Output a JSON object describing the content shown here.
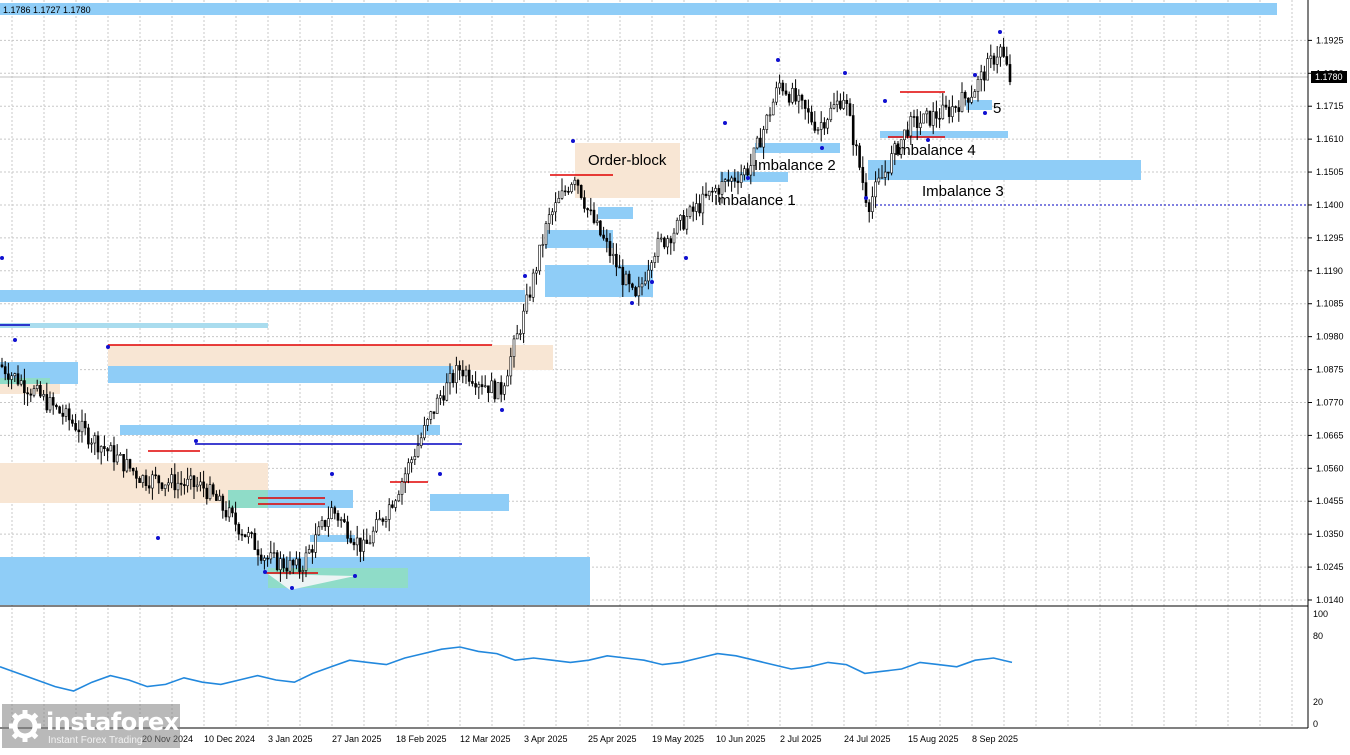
{
  "window": {
    "ohlc_readout": "1.1786 1.1727 1.1780"
  },
  "colors": {
    "grid": "#c8c8c8",
    "imbalance_zone": "#8fcdf7",
    "order_block_zone": "#f8e6d4",
    "teal_zone": "#8fdcc8",
    "red_level": "#e00000",
    "blue_level": "#0000c0",
    "pivot_marker": "#1010d0",
    "oscillator_line": "#2288dd",
    "candle": "#000000",
    "current_price_bg": "#000000",
    "current_price_fg": "#ffffff"
  },
  "chart_data": [
    {
      "type": "candlestick",
      "symbol_hint": "EURUSD",
      "ylim": [
        1.014,
        1.199
      ],
      "y_ticks": [
        1.1925,
        1.182,
        1.1715,
        1.161,
        1.1505,
        1.14,
        1.1295,
        1.119,
        1.1085,
        1.098,
        1.0875,
        1.077,
        1.0665,
        1.056,
        1.0455,
        1.035,
        1.0245,
        1.014
      ],
      "y_tick_labels": [
        "1.1925",
        "1.1820",
        "1.1715",
        "1.1610",
        "1.1505",
        "1.1400",
        "1.1295",
        "1.1190",
        "1.1085",
        "1.0980",
        "1.0875",
        "1.0770",
        "1.0665",
        "1.0560",
        "1.0455",
        "1.0350",
        "1.0245",
        "1.0140"
      ],
      "current_price": "1.1780",
      "x_tick_labels": [
        "20 Nov 2024",
        "10 Dec 2024",
        "3 Jan 2025",
        "27 Jan 2025",
        "18 Feb 2025",
        "12 Mar 2025",
        "3 Apr 2025",
        "25 Apr 2025",
        "19 May 2025",
        "10 Jun 2025",
        "2 Jul 2025",
        "24 Jul 2025",
        "15 Aug 2025",
        "8 Sep 2025"
      ],
      "close_series": [
        {
          "x": "early Nov 2024",
          "y": 1.089
        },
        {
          "x": "20 Nov 2024",
          "y": 1.053
        },
        {
          "x": "10 Dec 2024",
          "y": 1.05
        },
        {
          "x": "3 Jan 2025",
          "y": 1.027
        },
        {
          "x": "13 Jan 2025",
          "y": 1.024
        },
        {
          "x": "27 Jan 2025",
          "y": 1.043
        },
        {
          "x": "3 Feb 2025",
          "y": 1.03
        },
        {
          "x": "18 Feb 2025",
          "y": 1.048
        },
        {
          "x": "5 Mar 2025",
          "y": 1.079
        },
        {
          "x": "12 Mar 2025",
          "y": 1.088
        },
        {
          "x": "27 Mar 2025",
          "y": 1.08
        },
        {
          "x": "3 Apr 2025",
          "y": 1.105
        },
        {
          "x": "11 Apr 2025",
          "y": 1.135
        },
        {
          "x": "21 Apr 2025",
          "y": 1.15
        },
        {
          "x": "25 Apr 2025",
          "y": 1.138
        },
        {
          "x": "12 May 2025",
          "y": 1.109
        },
        {
          "x": "19 May 2025",
          "y": 1.125
        },
        {
          "x": "10 Jun 2025",
          "y": 1.145
        },
        {
          "x": "20 Jun 2025",
          "y": 1.152
        },
        {
          "x": "2 Jul 2025",
          "y": 1.179
        },
        {
          "x": "14 Jul 2025",
          "y": 1.165
        },
        {
          "x": "24 Jul 2025",
          "y": 1.175
        },
        {
          "x": "1 Aug 2025",
          "y": 1.14
        },
        {
          "x": "15 Aug 2025",
          "y": 1.165
        },
        {
          "x": "1 Sep 2025",
          "y": 1.17
        },
        {
          "x": "8 Sep 2025",
          "y": 1.176
        },
        {
          "x": "17 Sep 2025",
          "y": 1.19
        },
        {
          "x": "22 Sep 2025",
          "y": 1.178
        }
      ],
      "annotations": [
        {
          "label": "Order-block"
        },
        {
          "label": "Imbalance 1"
        },
        {
          "label": "Imbalance 2"
        },
        {
          "label": "Imbalance 3"
        },
        {
          "label": "Imbalance 4"
        },
        {
          "label": "5"
        }
      ],
      "levels": {
        "horizontal_dotted": 1.14
      }
    },
    {
      "type": "line",
      "panel": "oscillator",
      "ylim": [
        0,
        100
      ],
      "y_ticks": [
        100,
        80,
        20,
        0
      ],
      "y_tick_labels": [
        "100",
        "80",
        "20",
        "0"
      ],
      "values": [
        52,
        46,
        40,
        34,
        30,
        38,
        44,
        40,
        34,
        36,
        42,
        38,
        36,
        40,
        44,
        40,
        38,
        46,
        52,
        58,
        56,
        54,
        60,
        64,
        68,
        70,
        66,
        64,
        58,
        60,
        58,
        56,
        58,
        62,
        60,
        58,
        54,
        56,
        60,
        64,
        62,
        58,
        54,
        50,
        52,
        56,
        54,
        46,
        48,
        50,
        56,
        54,
        52,
        58,
        60,
        56
      ]
    }
  ],
  "watermark": {
    "brand": "instaforex",
    "tagline": "Instant Forex Trading"
  }
}
